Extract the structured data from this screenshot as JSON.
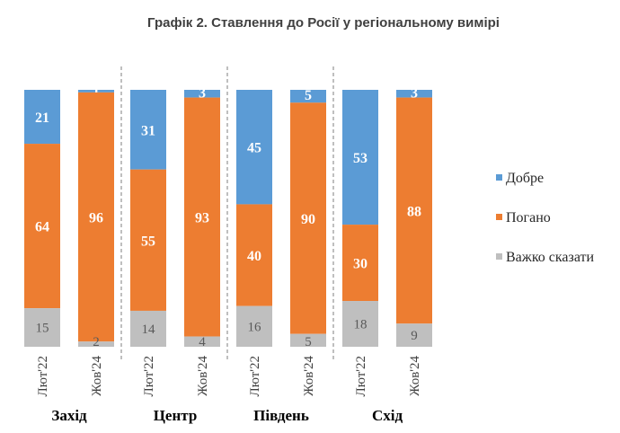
{
  "chart_data": {
    "type": "bar",
    "stacked": true,
    "normalized": true,
    "title": "Графік 2. Ставлення до Росії у регіональному вимірі",
    "groups": [
      {
        "name": "Захід",
        "bars": [
          {
            "label": "Лют'22",
            "values": [
              21,
              64,
              15
            ]
          },
          {
            "label": "Жов'24",
            "values": [
              1,
              96,
              2
            ]
          }
        ]
      },
      {
        "name": "Центр",
        "bars": [
          {
            "label": "Лют'22",
            "values": [
              31,
              55,
              14
            ]
          },
          {
            "label": "Жов'24",
            "values": [
              3,
              93,
              4
            ]
          }
        ]
      },
      {
        "name": "Південь",
        "bars": [
          {
            "label": "Лют'22",
            "values": [
              45,
              40,
              16
            ]
          },
          {
            "label": "Жов'24",
            "values": [
              5,
              90,
              5
            ]
          }
        ]
      },
      {
        "name": "Схід",
        "bars": [
          {
            "label": "Лют'22",
            "values": [
              53,
              30,
              18
            ]
          },
          {
            "label": "Жов'24",
            "values": [
              3,
              88,
              9
            ]
          }
        ]
      }
    ],
    "series": [
      {
        "name": "Добре",
        "color": "#5b9bd5"
      },
      {
        "name": "Погано",
        "color": "#ed7d31"
      },
      {
        "name": "Важко сказати",
        "color": "#bfbfbf"
      }
    ],
    "legend_position": "right",
    "separators": "dashed"
  }
}
